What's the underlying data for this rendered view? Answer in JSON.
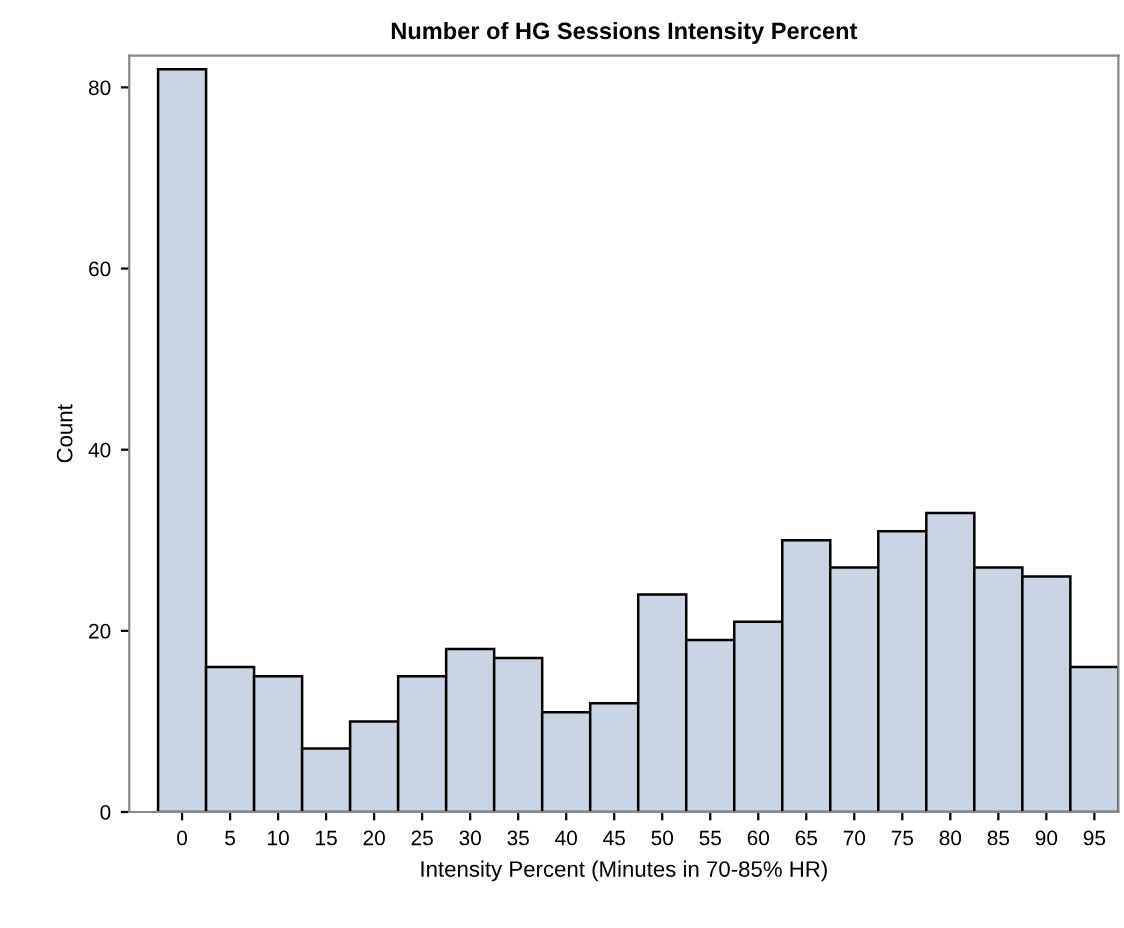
{
  "chart_data": {
    "type": "histogram",
    "title": "Number of HG Sessions Intensity Percent",
    "xlabel": "Intensity Percent (Minutes in 70-85% HR)",
    "ylabel": "Count",
    "bins": [
      -2.5,
      2.5,
      7.5,
      12.5,
      17.5,
      22.5,
      27.5,
      32.5,
      37.5,
      42.5,
      47.5,
      52.5,
      57.5,
      62.5,
      67.5,
      72.5,
      77.5,
      82.5,
      87.5,
      92.5,
      97.5
    ],
    "values": [
      82,
      16,
      15,
      7,
      10,
      15,
      18,
      17,
      11,
      12,
      24,
      19,
      21,
      30,
      27,
      31,
      33,
      27,
      26,
      16
    ],
    "color": "#c9d5e5",
    "xlim": [
      -5.5,
      97.5
    ],
    "xticks": [
      0,
      5,
      10,
      15,
      20,
      25,
      30,
      35,
      40,
      45,
      50,
      55,
      60,
      65,
      70,
      75,
      80,
      85,
      90,
      95
    ],
    "ylim": [
      0,
      83.5
    ],
    "yticks": [
      0,
      20,
      40,
      60,
      80
    ],
    "grid": false
  }
}
